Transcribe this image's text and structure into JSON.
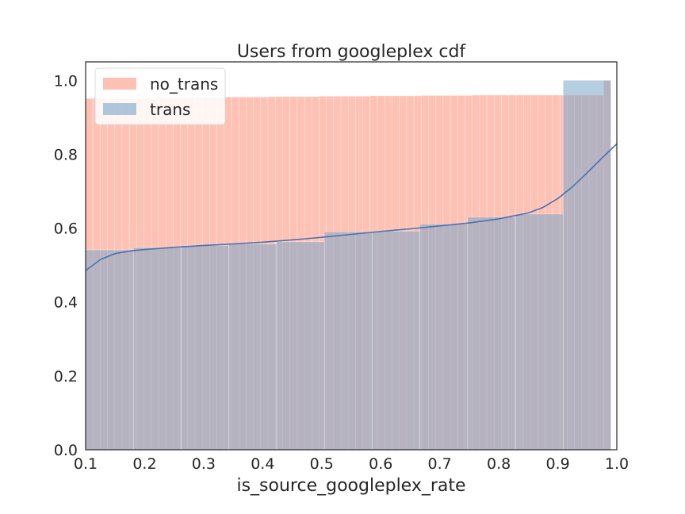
{
  "chart_data": {
    "type": "bar",
    "title": "Users from googleplex cdf",
    "xlabel": "is_source_googleplex_rate",
    "ylabel": "",
    "xlim": [
      0.1,
      1.0
    ],
    "ylim": [
      0.0,
      1.05
    ],
    "xticks": [
      "0.1",
      "0.2",
      "0.3",
      "0.4",
      "0.5",
      "0.6",
      "0.7",
      "0.8",
      "0.9",
      "1.0"
    ],
    "yticks": [
      "0.0",
      "0.2",
      "0.4",
      "0.6",
      "0.8",
      "1.0"
    ],
    "grid": false,
    "legend_position": "top-left",
    "series": [
      {
        "name": "no_trans",
        "kind": "histogram",
        "color": "#ffa08c",
        "bin_range": [
          0.1,
          0.99
        ],
        "values": [
          0.951,
          0.951,
          0.951,
          0.951,
          0.951,
          0.951,
          0.951,
          0.952,
          0.952,
          0.952,
          0.953,
          0.953,
          0.953,
          0.953,
          0.954,
          0.954,
          0.954,
          0.954,
          0.954,
          0.955,
          0.955,
          0.955,
          0.955,
          0.955,
          0.955,
          0.956,
          0.956,
          0.956,
          0.956,
          0.956,
          0.956,
          0.956,
          0.957,
          0.957,
          0.957,
          0.957,
          0.957,
          0.957,
          0.957,
          0.958,
          0.958,
          0.958,
          0.958,
          0.958,
          0.958,
          0.958,
          0.959,
          0.959,
          0.959,
          0.959,
          0.959,
          0.959,
          0.959,
          0.96,
          0.96,
          0.96,
          0.96,
          0.96,
          0.96,
          0.96,
          0.96,
          0.96,
          0.96,
          0.96,
          0.96,
          0.96,
          0.96,
          0.96,
          0.96,
          0.96,
          0.96,
          1.0
        ]
      },
      {
        "name": "trans",
        "kind": "histogram",
        "color": "#7aa6c8",
        "bin_range": [
          0.1,
          0.99
        ],
        "values": [
          0.541,
          0.547,
          0.553,
          0.557,
          0.563,
          0.59,
          0.592,
          0.611,
          0.63,
          0.638,
          1.0
        ],
        "kde": {
          "color": "#4c72b0",
          "x": [
            0.1,
            0.125,
            0.15,
            0.175,
            0.2,
            0.25,
            0.3,
            0.35,
            0.4,
            0.45,
            0.5,
            0.55,
            0.6,
            0.65,
            0.7,
            0.75,
            0.8,
            0.85,
            0.875,
            0.9,
            0.925,
            0.95,
            0.975,
            1.0
          ],
          "y": [
            0.485,
            0.515,
            0.531,
            0.538,
            0.542,
            0.548,
            0.553,
            0.557,
            0.562,
            0.568,
            0.575,
            0.583,
            0.591,
            0.598,
            0.606,
            0.614,
            0.625,
            0.641,
            0.656,
            0.68,
            0.712,
            0.75,
            0.79,
            0.828
          ]
        }
      }
    ]
  }
}
